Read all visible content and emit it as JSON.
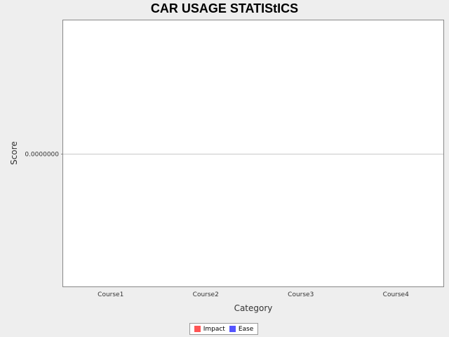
{
  "chart_data": {
    "type": "bar",
    "title": "CAR USAGE STATIStICS",
    "xlabel": "Category",
    "ylabel": "Score",
    "categories": [
      "Course1",
      "Course2",
      "Course3",
      "Course4"
    ],
    "series": [
      {
        "name": "Impact",
        "color": "#ff5555",
        "values": [
          0,
          0,
          0,
          0
        ]
      },
      {
        "name": "Ease",
        "color": "#5555ff",
        "values": [
          0,
          0,
          0,
          0
        ]
      }
    ],
    "y_ticks": [
      "0.0000000"
    ],
    "ylim": [
      -1,
      1
    ],
    "grid": true,
    "legend_position": "bottom"
  }
}
